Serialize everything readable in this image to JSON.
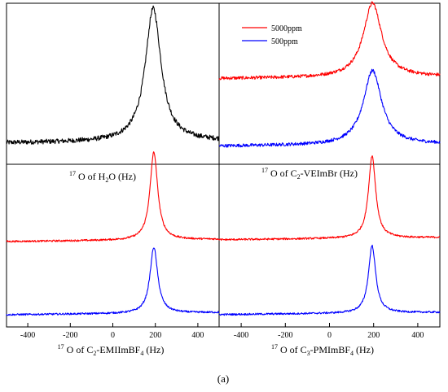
{
  "chart_data": [
    {
      "type": "line",
      "panel": "top-left",
      "xlabel_parts": [
        [
          "17",
          "sup"
        ],
        [
          " O of H",
          ""
        ],
        [
          "2",
          "sub"
        ],
        [
          "O (Hz)",
          ""
        ]
      ],
      "xlim": [
        -500,
        500
      ],
      "series": [
        {
          "color": "#000000",
          "center": 190,
          "width": 45,
          "height": 1.0,
          "baseline": 0.05,
          "noise": 0.018
        }
      ]
    },
    {
      "type": "line",
      "panel": "top-right",
      "xlabel_parts": [
        [
          "17",
          "sup"
        ],
        [
          " O of C",
          ""
        ],
        [
          "2",
          "sub"
        ],
        [
          "-VEImBr (Hz)",
          ""
        ]
      ],
      "xlim": [
        -500,
        500
      ],
      "legend_position": "top-left",
      "series": [
        {
          "name": "5000ppm",
          "color": "#ff0000",
          "center": 195,
          "width": 50,
          "height": 0.55,
          "baseline": 0.55,
          "noise": 0.012
        },
        {
          "name": "500ppm",
          "color": "#0000ff",
          "center": 195,
          "width": 50,
          "height": 0.55,
          "baseline": 0.05,
          "noise": 0.012
        }
      ]
    },
    {
      "type": "line",
      "panel": "bottom-left",
      "xlabel_parts": [
        [
          "17",
          "sup"
        ],
        [
          " O of C",
          ""
        ],
        [
          "2",
          "sub"
        ],
        [
          "-EMIImBF",
          ""
        ],
        [
          "4",
          "sub"
        ],
        [
          " (Hz)",
          ""
        ]
      ],
      "xlim": [
        -500,
        500
      ],
      "xticks": [
        -400,
        -200,
        0,
        200,
        400
      ],
      "series": [
        {
          "color": "#ff0000",
          "center": 193,
          "width": 22,
          "height": 0.6,
          "baseline": 0.55,
          "noise": 0.006
        },
        {
          "color": "#0000ff",
          "center": 193,
          "width": 22,
          "height": 0.45,
          "baseline": 0.05,
          "noise": 0.006
        }
      ]
    },
    {
      "type": "line",
      "panel": "bottom-right",
      "xlabel_parts": [
        [
          "17",
          "sup"
        ],
        [
          " O of C",
          ""
        ],
        [
          "3",
          "sub"
        ],
        [
          "-PMImBF",
          ""
        ],
        [
          "4",
          "sub"
        ],
        [
          " (Hz)",
          ""
        ]
      ],
      "xlim": [
        -500,
        500
      ],
      "xticks": [
        -400,
        -200,
        0,
        200,
        400
      ],
      "series": [
        {
          "color": "#ff0000",
          "center": 193,
          "width": 20,
          "height": 0.55,
          "baseline": 0.55,
          "noise": 0.006
        },
        {
          "color": "#0000ff",
          "center": 193,
          "width": 20,
          "height": 0.45,
          "baseline": 0.05,
          "noise": 0.006
        }
      ]
    }
  ],
  "figure_label": "(a)"
}
